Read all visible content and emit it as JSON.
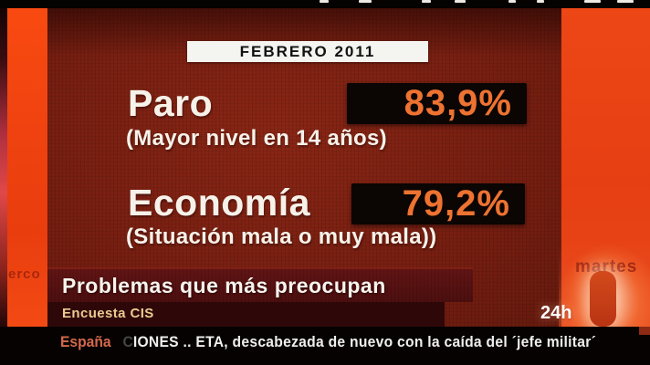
{
  "colors": {
    "bright_orange": "#ee4613",
    "panel_maroon": "#7c2113",
    "value_orange": "#ee7231",
    "banner_dark": "#5a1212",
    "banner_darker": "#2e0808",
    "source_text": "#ecca90",
    "ticker_region_text": "#d4694a"
  },
  "chart_data": {
    "type": "table",
    "title": "Problemas que más preocupan",
    "date": "FEBRERO 2011",
    "source": "Encuesta CIS",
    "categories": [
      "Paro",
      "Economía"
    ],
    "values": [
      83.9,
      79.2
    ],
    "value_labels": [
      "83,9%",
      "79,2%"
    ],
    "notes": [
      "(Mayor nivel en 14 años)",
      "(Situación mala o muy mala))"
    ]
  },
  "panel": {
    "date_label": "FEBRERO 2011",
    "items": [
      {
        "label": "Paro",
        "value": "83,9%",
        "note": "(Mayor nivel en 14 años)"
      },
      {
        "label": "Economía",
        "value": "79,2%",
        "note": "(Situación mala o muy mala))"
      }
    ]
  },
  "banner": {
    "title": "Problemas que más preocupan",
    "source": "Encuesta CIS"
  },
  "watermarks": {
    "day": "martes",
    "side": "erco"
  },
  "channel": {
    "logo": "24h"
  },
  "ticker": {
    "region": "España",
    "lead": "C",
    "headline": "IONES .. ETA, descabezada de nuevo con la caída del ´jefe militar´"
  }
}
